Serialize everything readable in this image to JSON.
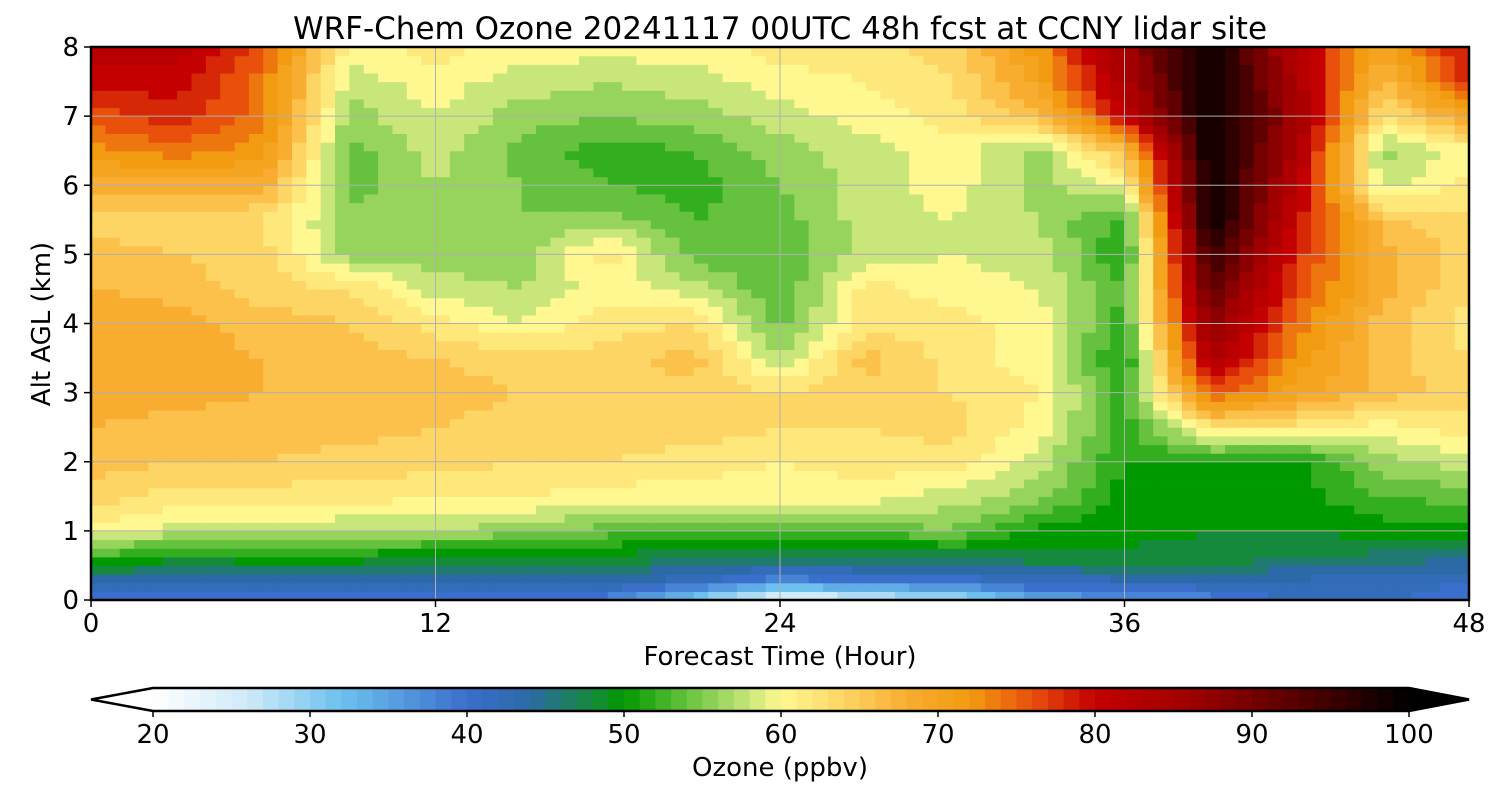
{
  "chart_data": {
    "type": "heatmap",
    "title": "WRF-Chem Ozone  20241117 00UTC 48h fcst at CCNY lidar site",
    "xlabel": "Forecast Time (Hour)",
    "ylabel": "Alt AGL (km)",
    "xlim": [
      0,
      48
    ],
    "ylim": [
      0,
      8
    ],
    "xticks": [
      0,
      12,
      24,
      36,
      48
    ],
    "yticks": [
      0,
      1,
      2,
      3,
      4,
      5,
      6,
      7,
      8
    ],
    "grid": true,
    "colorbar": {
      "label": "Ozone  (ppbv)",
      "range": [
        20,
        100
      ],
      "ticks": [
        20,
        30,
        40,
        50,
        60,
        70,
        80,
        90,
        100
      ],
      "extend": "both",
      "colors": {
        "20": "#ffffff",
        "26": "#cfeaf8",
        "32": "#6cc1ee",
        "40": "#3b6fcc",
        "44": "#2b6aa6",
        "48": "#168a3c",
        "50": "#009900",
        "54": "#66c23e",
        "58": "#c8e67a",
        "60": "#fff890",
        "64": "#fdd565",
        "68": "#f8ad30",
        "72": "#f29b10",
        "76": "#e8500c",
        "80": "#c40000",
        "86": "#a00000",
        "92": "#600000",
        "100": "#000000"
      }
    },
    "x": [
      0,
      3,
      6,
      9,
      12,
      15,
      18,
      21,
      24,
      27,
      30,
      33,
      36,
      39,
      42,
      45,
      48
    ],
    "y": [
      0,
      0.3,
      0.6,
      1,
      1.5,
      2,
      2.5,
      3,
      3.5,
      4,
      4.5,
      5,
      5.5,
      6,
      6.5,
      7,
      7.5,
      8
    ],
    "z": [
      [
        40,
        40,
        40,
        40,
        40,
        40,
        38,
        30,
        22,
        25,
        28,
        35,
        36,
        38,
        42,
        42,
        38
      ],
      [
        44,
        44,
        44,
        44,
        44,
        44,
        44,
        42,
        38,
        40,
        40,
        42,
        43,
        43,
        43,
        42,
        42
      ],
      [
        52,
        49,
        50,
        50,
        48,
        48,
        48,
        47,
        47,
        47,
        47,
        48,
        48,
        48,
        47,
        46,
        45
      ],
      [
        60,
        58,
        58,
        57,
        57,
        56,
        54,
        53,
        52,
        53,
        55,
        50,
        50,
        49,
        49,
        50,
        50
      ],
      [
        64,
        62,
        62,
        62,
        61,
        61,
        60,
        60,
        60,
        60,
        58,
        56,
        50,
        50,
        50,
        53,
        54
      ],
      [
        66,
        65,
        65,
        64,
        64,
        63,
        63,
        62,
        61,
        62,
        62,
        58,
        51,
        51,
        50,
        56,
        58
      ],
      [
        67,
        66,
        66,
        66,
        65,
        64,
        64,
        64,
        63,
        63,
        64,
        60,
        52,
        62,
        62,
        60,
        62
      ],
      [
        68,
        68,
        67,
        67,
        66,
        65,
        65,
        64,
        63,
        64,
        63,
        61,
        52,
        76,
        70,
        66,
        64
      ],
      [
        69,
        68,
        67,
        66,
        65,
        64,
        64,
        66,
        57,
        66,
        62,
        60,
        50,
        84,
        72,
        66,
        63
      ],
      [
        69,
        68,
        66,
        65,
        62,
        59,
        62,
        63,
        54,
        62,
        62,
        60,
        52,
        88,
        74,
        66,
        62
      ],
      [
        67,
        66,
        64,
        63,
        58,
        57,
        60,
        58,
        53,
        62,
        60,
        59,
        53,
        92,
        76,
        68,
        63
      ],
      [
        66,
        65,
        64,
        56,
        56,
        56,
        62,
        54,
        53,
        58,
        59,
        58,
        51,
        96,
        78,
        68,
        64
      ],
      [
        64,
        64,
        63,
        56,
        56,
        55,
        56,
        53,
        54,
        58,
        59,
        57,
        52,
        100,
        80,
        66,
        63
      ],
      [
        68,
        68,
        68,
        54,
        57,
        55,
        53,
        52,
        55,
        58,
        60,
        56,
        60,
        100,
        82,
        58,
        62
      ],
      [
        72,
        74,
        72,
        54,
        58,
        54,
        52,
        53,
        56,
        58,
        60,
        56,
        66,
        100,
        84,
        56,
        60
      ],
      [
        76,
        78,
        74,
        56,
        59,
        56,
        55,
        56,
        58,
        60,
        62,
        66,
        80,
        100,
        86,
        62,
        70
      ],
      [
        80,
        80,
        74,
        58,
        60,
        58,
        57,
        58,
        60,
        61,
        63,
        70,
        84,
        100,
        84,
        66,
        78
      ],
      [
        82,
        82,
        76,
        60,
        62,
        60,
        60,
        60,
        62,
        62,
        64,
        72,
        86,
        100,
        82,
        70,
        80
      ]
    ]
  }
}
